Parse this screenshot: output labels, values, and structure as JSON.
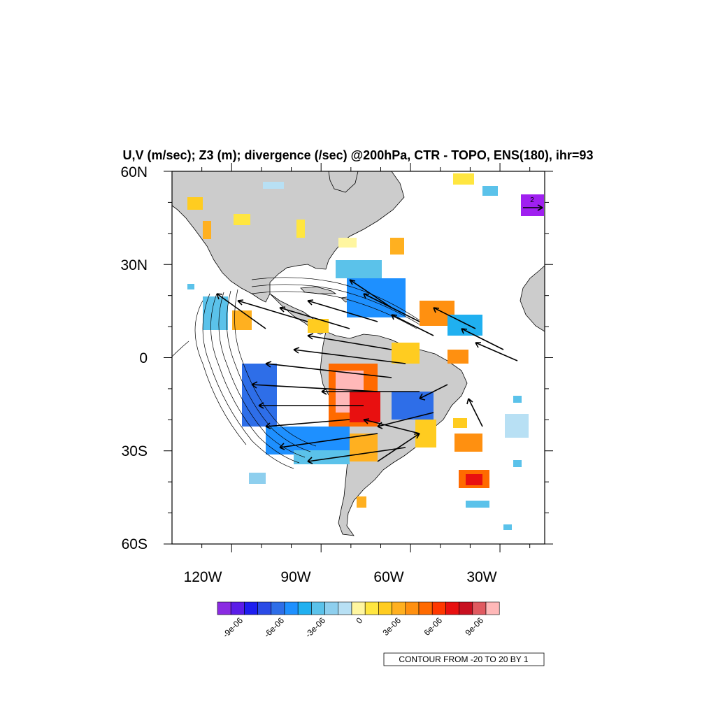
{
  "title": "U,V (m/sec); Z3 (m); divergence (/sec) @200hPa, CTR - TOPO, ENS(180), ihr=93",
  "map": {
    "lon_range": [
      -140,
      -15
    ],
    "lat_range": [
      -60,
      60
    ],
    "lat_labels": [
      "60N",
      "30N",
      "0",
      "30S",
      "60S"
    ],
    "lon_labels": [
      "120W",
      "90W",
      "60W",
      "30W"
    ],
    "land_color": "#cccccc",
    "coastline_color": "#000000"
  },
  "colorbar": {
    "labels": [
      "-9e-06",
      "-6e-06",
      "-3e-06",
      "0",
      "3e-06",
      "6e-06",
      "9e-06"
    ],
    "colors": [
      "#8a2be2",
      "#5b1de8",
      "#1e1ef0",
      "#2a4be6",
      "#2e6ee8",
      "#1e90ff",
      "#20b0f0",
      "#5bc2ea",
      "#8ecfee",
      "#b8e0f4",
      "#fff6a0",
      "#ffe640",
      "#ffcc20",
      "#ffb020",
      "#ff9010",
      "#ff6a00",
      "#ff3800",
      "#e81010",
      "#c81020",
      "#e05a60",
      "#ffb8b8"
    ]
  },
  "contour_info": "CONTOUR FROM -20 TO 20 BY 1",
  "reference_vector": {
    "value": "2",
    "color": "#a020f0"
  }
}
